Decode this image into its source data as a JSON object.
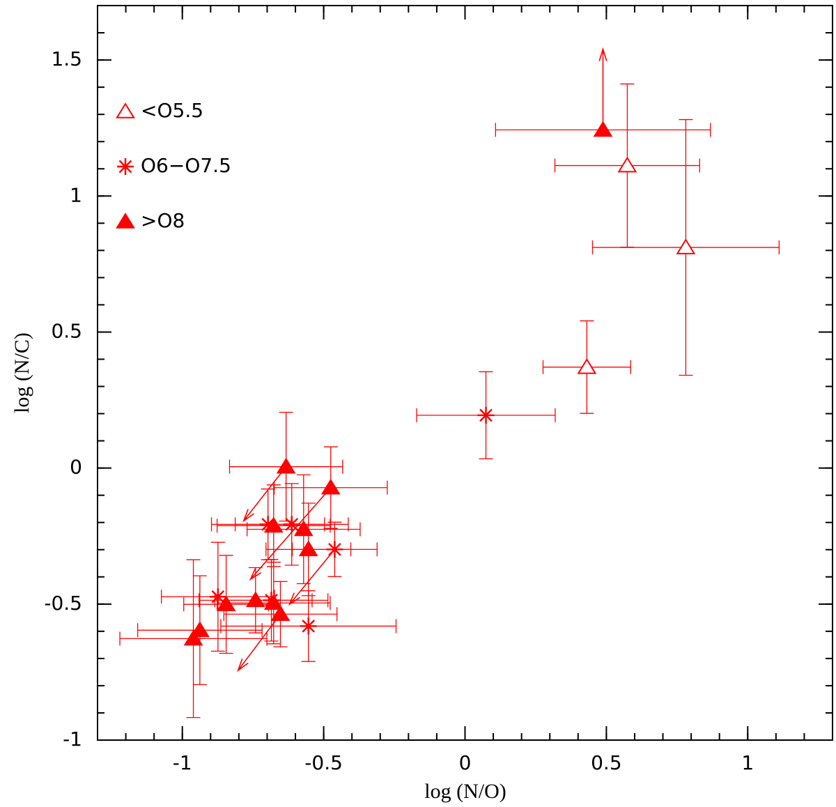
{
  "chart_data": {
    "type": "scatter",
    "xlabel": "log (N/O)",
    "ylabel": "log (N/C)",
    "xlim": [
      -1.3,
      1.3
    ],
    "ylim": [
      -1,
      1.7
    ],
    "xticks": [
      -1,
      -0.5,
      0,
      0.5,
      1
    ],
    "yticks": [
      -1,
      -0.5,
      0,
      0.5,
      1,
      1.5
    ],
    "minor_tick_step": 0.1,
    "color": "#ff0000",
    "legend": "upper left",
    "series": [
      {
        "name": "<O5.5",
        "marker": "open-triangle",
        "x": [
          0.574,
          0.781,
          0.431
        ],
        "y": [
          1.112,
          0.811,
          0.371
        ],
        "xerr": [
          0.256,
          0.33,
          0.155
        ],
        "yerr": [
          0.3,
          0.47,
          0.17
        ]
      },
      {
        "name": "O6−O7.5",
        "marker": "asterisk",
        "x": [
          0.074,
          -0.461,
          -0.554,
          -0.874,
          -0.685,
          -0.697,
          -0.613
        ],
        "y": [
          0.194,
          -0.299,
          -0.581,
          -0.473,
          -0.486,
          -0.207,
          -0.207
        ],
        "xerr": [
          0.245,
          0.15,
          0.31,
          0.2,
          0.2,
          0.2,
          0.2
        ],
        "yerr": [
          0.16,
          0.1,
          0.13,
          0.2,
          0.15,
          0.13,
          0.15
        ]
      },
      {
        "name": ">O8",
        "marker": "filled-triangle",
        "x": [
          0.488,
          -0.633,
          -0.475,
          -0.677,
          -0.571,
          -0.554,
          -0.741,
          -0.845,
          -0.677,
          -0.653,
          -0.938,
          -0.961
        ],
        "y": [
          1.243,
          0.005,
          -0.072,
          -0.212,
          -0.225,
          -0.299,
          -0.486,
          -0.501,
          -0.496,
          -0.537,
          -0.596,
          -0.627
        ],
        "xerr": [
          0.38,
          0.2,
          0.2,
          0.2,
          0.2,
          0.15,
          0.2,
          0.15,
          0.2,
          0.2,
          0.22,
          0.26
        ],
        "yerr": [
          null,
          0.2,
          0.15,
          0.15,
          0.2,
          0.17,
          0.12,
          0.18,
          0.15,
          0.12,
          0.2,
          0.29
        ]
      }
    ],
    "arrows": [
      {
        "x": 0.488,
        "y": 1.243,
        "x2": 0.488,
        "y2": 1.54
      },
      {
        "x": -0.633,
        "y": 0.005,
        "x2": -0.783,
        "y2": -0.194
      },
      {
        "x": -0.475,
        "y": -0.072,
        "x2": -0.759,
        "y2": -0.409
      },
      {
        "x": -0.461,
        "y": -0.299,
        "x2": -0.621,
        "y2": -0.501
      },
      {
        "x": -0.653,
        "y": -0.537,
        "x2": -0.803,
        "y2": -0.744
      }
    ]
  }
}
